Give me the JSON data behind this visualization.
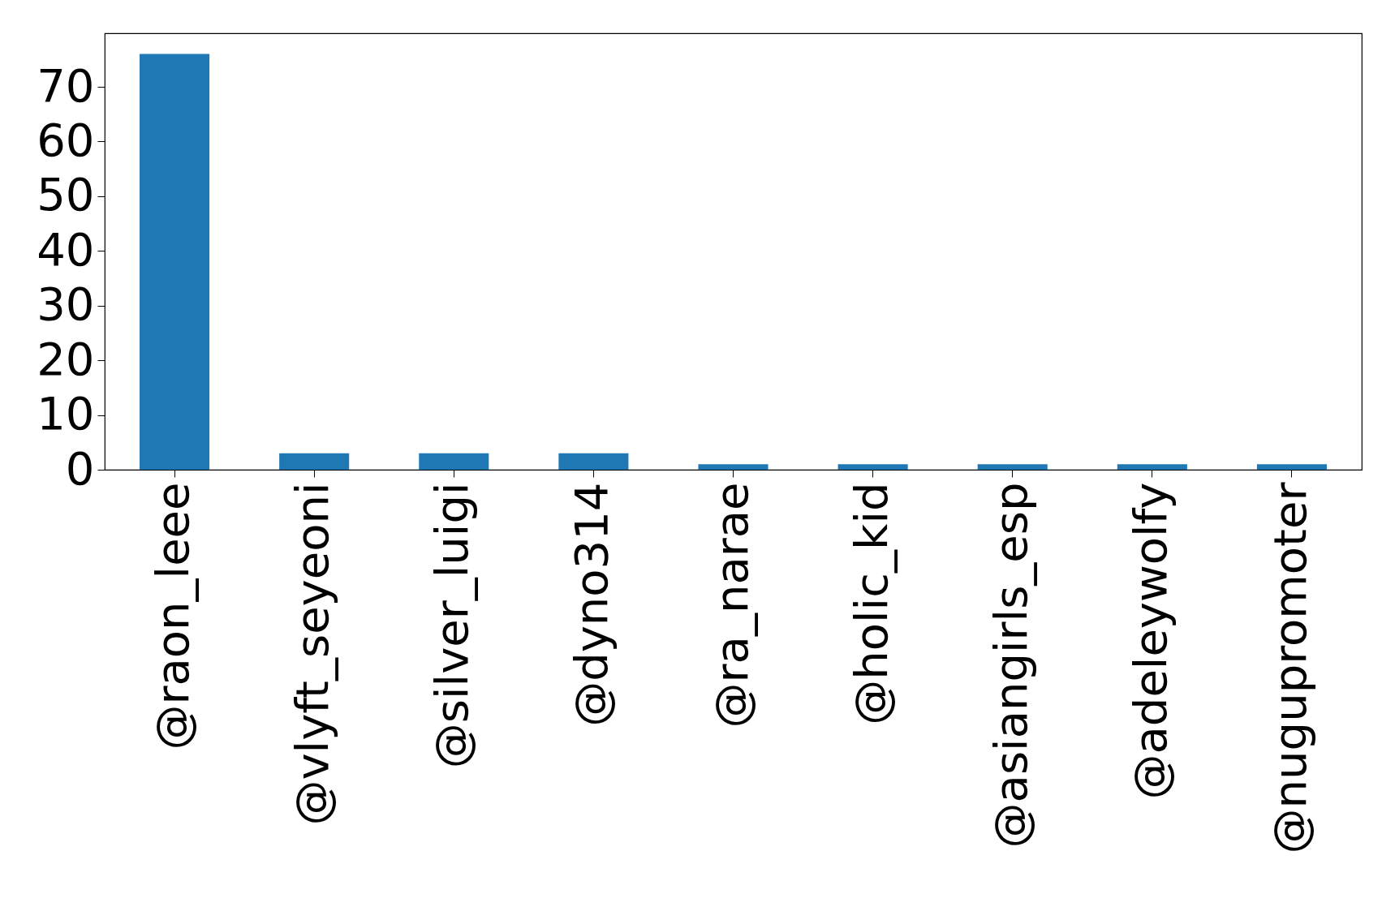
{
  "chart_data": {
    "type": "bar",
    "categories": [
      "@raon_leee",
      "@vlyft_seyeoni",
      "@silver_luigi",
      "@dyno314",
      "@ra_narae",
      "@holic_kid",
      "@asiangirls_esp",
      "@adeleywolfy",
      "@nugupromoter"
    ],
    "values": [
      76,
      3,
      3,
      3,
      1,
      1,
      1,
      1,
      1
    ],
    "color": "#1f77b4",
    "ylim": [
      0,
      79.8
    ],
    "yticks": [
      0,
      10,
      20,
      30,
      40,
      50,
      60,
      70
    ]
  }
}
